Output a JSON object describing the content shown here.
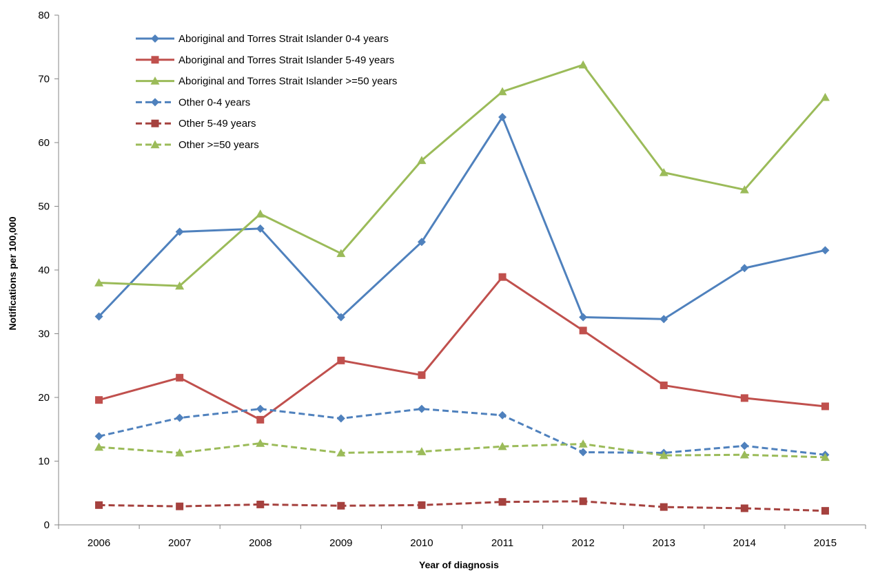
{
  "chart_data": {
    "type": "line",
    "title": "",
    "xlabel": "Year of diagnosis",
    "ylabel": "Notifications per 100,000",
    "categories": [
      "2006",
      "2007",
      "2008",
      "2009",
      "2010",
      "2011",
      "2012",
      "2013",
      "2014",
      "2015"
    ],
    "ylim": [
      0,
      80
    ],
    "yticks": [
      "0",
      "10",
      "20",
      "30",
      "40",
      "50",
      "60",
      "70",
      "80"
    ],
    "grid": false,
    "legend_position": "top-left",
    "series": [
      {
        "name": "Aboriginal and Torres Strait Islander  0-4 years",
        "color": "#4F81BD",
        "dash": "solid",
        "marker": "diamond",
        "values": [
          32.7,
          46.0,
          46.5,
          32.6,
          44.4,
          64.0,
          32.6,
          32.3,
          40.3,
          43.1
        ]
      },
      {
        "name": "Aboriginal and Torres Strait Islander 5-49 years",
        "color": "#C0504D",
        "dash": "solid",
        "marker": "square",
        "values": [
          19.6,
          23.1,
          16.5,
          25.8,
          23.5,
          38.9,
          30.5,
          21.9,
          19.9,
          18.6
        ]
      },
      {
        "name": "Aboriginal and Torres Strait Islander >=50 years",
        "color": "#9BBB59",
        "dash": "solid",
        "marker": "triangle",
        "values": [
          38.0,
          37.5,
          48.8,
          42.6,
          57.2,
          68.0,
          72.2,
          55.3,
          52.6,
          67.1
        ]
      },
      {
        "name": "Other 0-4 years",
        "color": "#4F81BD",
        "dash": "dashed",
        "marker": "diamond",
        "values": [
          13.9,
          16.8,
          18.2,
          16.7,
          18.2,
          17.2,
          11.4,
          11.3,
          12.4,
          11.0
        ]
      },
      {
        "name": "Other 5-49 years",
        "color": "#A5413E",
        "dash": "dashed",
        "marker": "square",
        "values": [
          3.1,
          2.9,
          3.2,
          3.0,
          3.1,
          3.6,
          3.7,
          2.8,
          2.6,
          2.2
        ]
      },
      {
        "name": "Other  >=50 years",
        "color": "#9BBB59",
        "dash": "dashed",
        "marker": "triangle",
        "values": [
          12.2,
          11.3,
          12.8,
          11.3,
          11.5,
          12.3,
          12.7,
          10.9,
          11.0,
          10.6
        ]
      }
    ]
  }
}
